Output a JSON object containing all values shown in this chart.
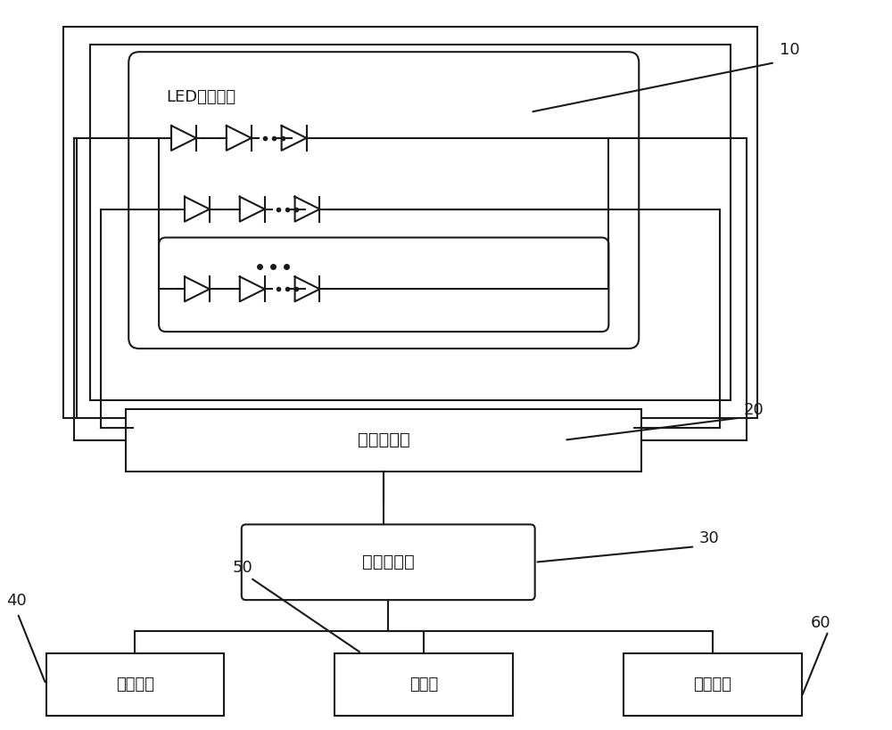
{
  "bg_color": "#ffffff",
  "line_color": "#1a1a1a",
  "text_color": "#1a1a1a",
  "label_10": "10",
  "label_20": "20",
  "label_30": "30",
  "label_40": "40",
  "label_50": "50",
  "label_60": "60",
  "led_device_label": "LED发光装置",
  "constant_current_label": "恒流发生器",
  "micro_control_label": "微控制单元",
  "audio_label": "音频单元",
  "memory_label": "存储器",
  "comm_label": "通信模块"
}
